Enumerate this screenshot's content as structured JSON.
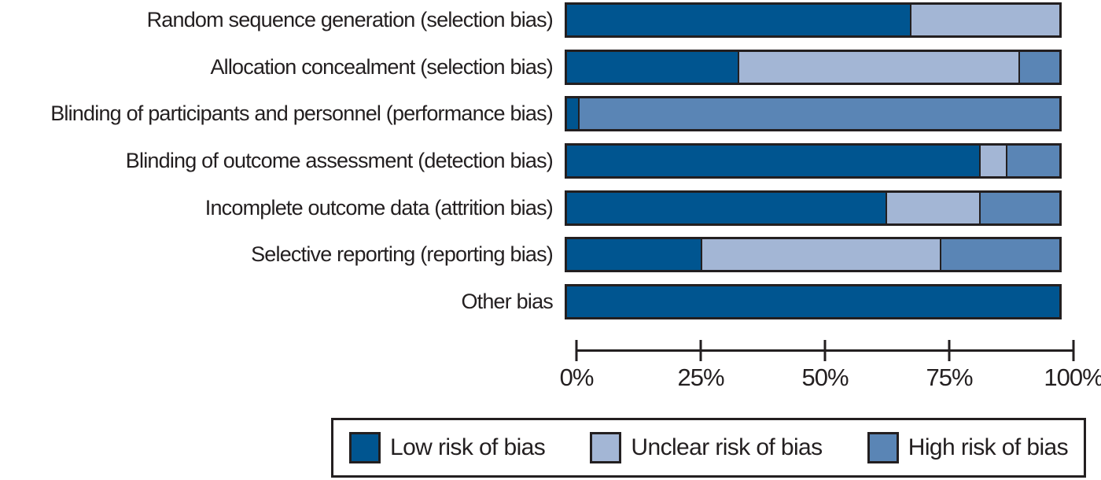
{
  "figure": {
    "background": "#ffffff",
    "text_color": "#231f20",
    "outline_color": "#231f20"
  },
  "chart_data": {
    "type": "bar",
    "orientation": "horizontal",
    "stacked": true,
    "unit": "percent",
    "title": "",
    "xlabel": "",
    "ylabel": "",
    "xlim": [
      0,
      100
    ],
    "grid": false,
    "categories": [
      "Random sequence generation (selection bias)",
      "Allocation concealment (selection bias)",
      "Blinding of participants and personnel (performance bias)",
      "Blinding of outcome assessment (detection bias)",
      "Incomplete outcome data (attrition bias)",
      "Selective reporting (reporting bias)",
      "Other bias"
    ],
    "series": [
      {
        "name": "Low risk of bias",
        "color": "#005590",
        "values": [
          70,
          35,
          2.5,
          84,
          65,
          27.5,
          100
        ]
      },
      {
        "name": "Unclear risk of bias",
        "color": "#a3b6d5",
        "values": [
          30,
          57,
          0,
          5.5,
          19,
          48.5,
          0
        ]
      },
      {
        "name": "High risk of bias",
        "color": "#5a85b5",
        "values": [
          0,
          8,
          97.5,
          10.5,
          16,
          24,
          0
        ]
      }
    ],
    "x_axis": {
      "tick_labels": [
        "0%",
        "25%",
        "50%",
        "75%",
        "100%"
      ],
      "tick_values": [
        0,
        25,
        50,
        75,
        100
      ]
    },
    "legend": {
      "position": "bottom",
      "entries": [
        "Low risk of bias",
        "Unclear risk of bias",
        "High risk of bias"
      ]
    }
  }
}
